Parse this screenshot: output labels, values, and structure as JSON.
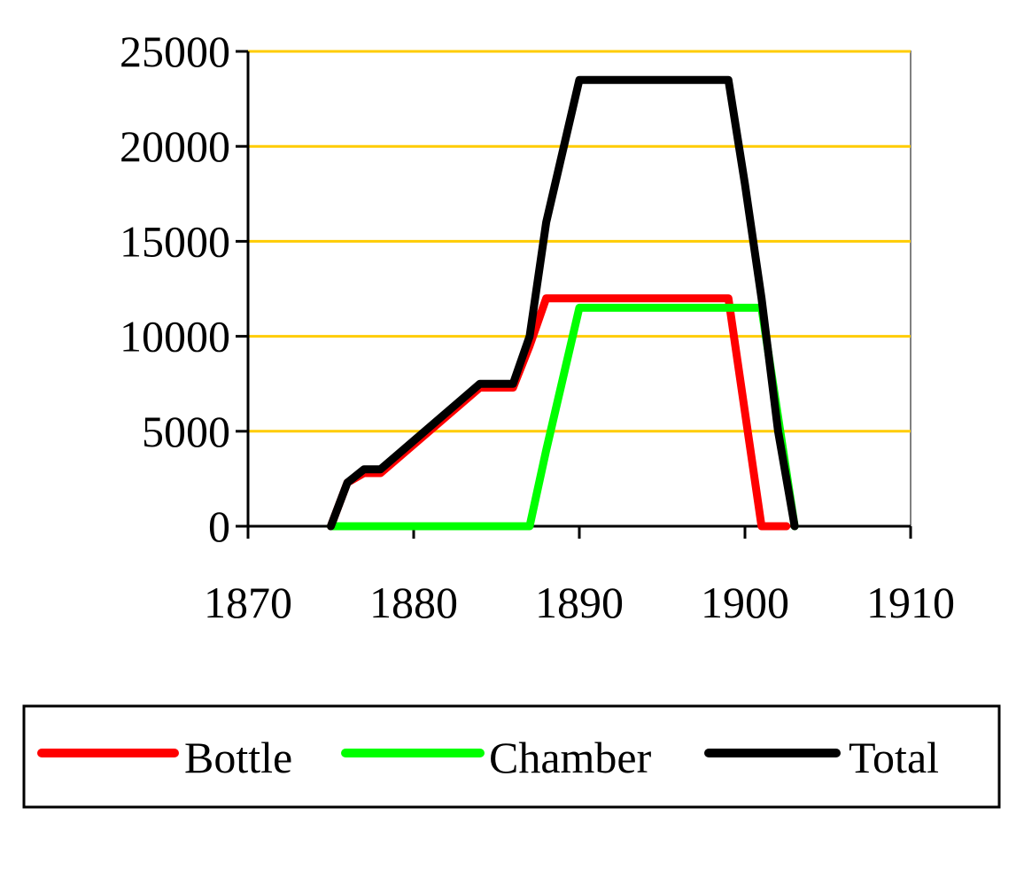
{
  "chart_data": {
    "type": "line",
    "title": "",
    "xlabel": "",
    "ylabel": "",
    "xlim": [
      1870,
      1910
    ],
    "ylim": [
      0,
      25000
    ],
    "x_ticks": [
      1870,
      1880,
      1890,
      1900,
      1910
    ],
    "y_ticks": [
      0,
      5000,
      10000,
      15000,
      20000,
      25000
    ],
    "x_tick_labels": [
      "1870",
      "1880",
      "1890",
      "1900",
      "1910"
    ],
    "y_tick_labels": [
      "0",
      "5000",
      "10000",
      "15000",
      "20000",
      "25000"
    ],
    "grid": "horizontal",
    "legend_position": "bottom",
    "colors": {
      "grid": "#ffcc00",
      "axis": "#000000",
      "plot_border": "#808080"
    },
    "series": [
      {
        "name": "Bottle",
        "color": "#ff0000",
        "points": [
          [
            1875,
            0
          ],
          [
            1876,
            2300
          ],
          [
            1877,
            2800
          ],
          [
            1878,
            2800
          ],
          [
            1884,
            7300
          ],
          [
            1886,
            7300
          ],
          [
            1887,
            9500
          ],
          [
            1888,
            12000
          ],
          [
            1899,
            12000
          ],
          [
            1900,
            6000
          ],
          [
            1901,
            0
          ],
          [
            1902.5,
            0
          ]
        ]
      },
      {
        "name": "Chamber",
        "color": "#00ff00",
        "points": [
          [
            1875,
            0
          ],
          [
            1887,
            0
          ],
          [
            1888,
            4000
          ],
          [
            1890,
            11500
          ],
          [
            1901,
            11500
          ],
          [
            1903,
            0
          ]
        ]
      },
      {
        "name": "Total",
        "color": "#000000",
        "points": [
          [
            1875,
            0
          ],
          [
            1876,
            2300
          ],
          [
            1877,
            3000
          ],
          [
            1878,
            3000
          ],
          [
            1884,
            7500
          ],
          [
            1886,
            7500
          ],
          [
            1887,
            10000
          ],
          [
            1888,
            16000
          ],
          [
            1890,
            23500
          ],
          [
            1899,
            23500
          ],
          [
            1900,
            18000
          ],
          [
            1901,
            12000
          ],
          [
            1902,
            5000
          ],
          [
            1903,
            0
          ]
        ]
      }
    ]
  }
}
